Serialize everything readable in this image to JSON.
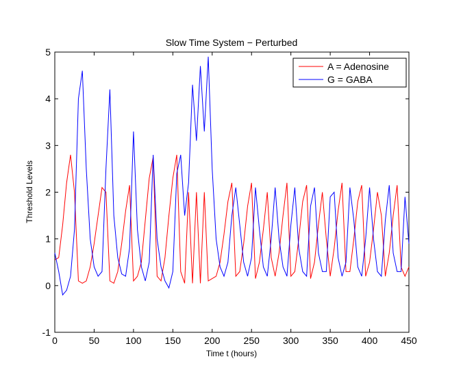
{
  "chart_data": {
    "type": "line",
    "title": "Slow Time System − Perturbed",
    "x_label": "Time t (hours)",
    "y_label": "Threshold Levels",
    "x": [
      0,
      5,
      10,
      15,
      20,
      25,
      30,
      35,
      40,
      45,
      50,
      55,
      60,
      65,
      70,
      75,
      80,
      85,
      90,
      95,
      100,
      105,
      110,
      115,
      120,
      125,
      130,
      135,
      140,
      145,
      150,
      155,
      160,
      165,
      170,
      175,
      180,
      185,
      190,
      195,
      200,
      205,
      210,
      215,
      220,
      225,
      230,
      235,
      240,
      245,
      250,
      255,
      260,
      265,
      270,
      275,
      280,
      285,
      290,
      295,
      300,
      305,
      310,
      315,
      320,
      325,
      330,
      335,
      340,
      345,
      350,
      355,
      360,
      365,
      370,
      375,
      380,
      385,
      390,
      395,
      400,
      405,
      410,
      415,
      420,
      425,
      430,
      435,
      440,
      445,
      450
    ],
    "series": [
      {
        "name": "A = Adenosine",
        "color": "#ff0000",
        "values": [
          0.55,
          0.6,
          1.3,
          2.2,
          2.8,
          2.0,
          0.1,
          0.05,
          0.1,
          0.4,
          0.9,
          1.5,
          2.1,
          2.0,
          0.1,
          0.05,
          0.3,
          0.9,
          1.6,
          2.15,
          0.1,
          0.2,
          0.5,
          1.4,
          2.3,
          2.75,
          0.2,
          0.1,
          0.6,
          1.5,
          2.3,
          2.8,
          0.3,
          0.05,
          2.0,
          0.05,
          2.0,
          0.05,
          2.0,
          0.1,
          0.15,
          0.2,
          0.5,
          1.1,
          1.8,
          2.2,
          0.2,
          0.3,
          0.9,
          1.7,
          2.2,
          0.15,
          0.5,
          1.2,
          2.0,
          0.6,
          0.2,
          0.7,
          1.5,
          2.2,
          0.2,
          0.3,
          1.0,
          1.8,
          2.15,
          0.15,
          0.5,
          1.3,
          2.0,
          1.0,
          0.2,
          0.8,
          1.6,
          2.2,
          0.3,
          0.3,
          1.0,
          1.8,
          2.15,
          0.2,
          0.5,
          1.2,
          2.0,
          1.5,
          0.2,
          0.7,
          1.5,
          2.15,
          0.4,
          0.2,
          0.4
        ]
      },
      {
        "name": "G = GABA",
        "color": "#0000ff",
        "values": [
          0.7,
          0.3,
          -0.2,
          -0.1,
          0.2,
          1.2,
          4.0,
          4.6,
          2.5,
          1.0,
          0.4,
          0.2,
          0.3,
          2.5,
          4.2,
          1.5,
          0.6,
          0.25,
          0.2,
          0.8,
          3.3,
          1.2,
          0.4,
          0.1,
          0.5,
          2.8,
          1.0,
          0.4,
          0.1,
          -0.05,
          0.3,
          2.4,
          2.8,
          1.5,
          2.2,
          4.3,
          3.1,
          4.7,
          3.3,
          4.9,
          2.5,
          1.0,
          0.4,
          0.2,
          0.5,
          1.5,
          2.1,
          1.3,
          0.5,
          0.2,
          0.6,
          2.1,
          1.2,
          0.4,
          0.2,
          1.0,
          2.1,
          1.0,
          0.4,
          0.2,
          1.3,
          2.1,
          0.8,
          0.3,
          0.2,
          1.7,
          2.1,
          0.7,
          0.3,
          0.3,
          1.9,
          2.0,
          0.6,
          0.2,
          0.5,
          2.1,
          1.4,
          0.4,
          0.2,
          1.0,
          2.1,
          1.0,
          0.3,
          0.2,
          1.4,
          2.15,
          0.7,
          0.3,
          0.3,
          1.9,
          0.9
        ]
      }
    ],
    "xlim": [
      0,
      450
    ],
    "xticks": [
      0,
      50,
      100,
      150,
      200,
      250,
      300,
      350,
      400,
      450
    ],
    "ylim": [
      -1,
      5
    ],
    "yticks": [
      -1,
      0,
      1,
      2,
      3,
      4,
      5
    ],
    "legend": "top-right",
    "grid": false
  }
}
